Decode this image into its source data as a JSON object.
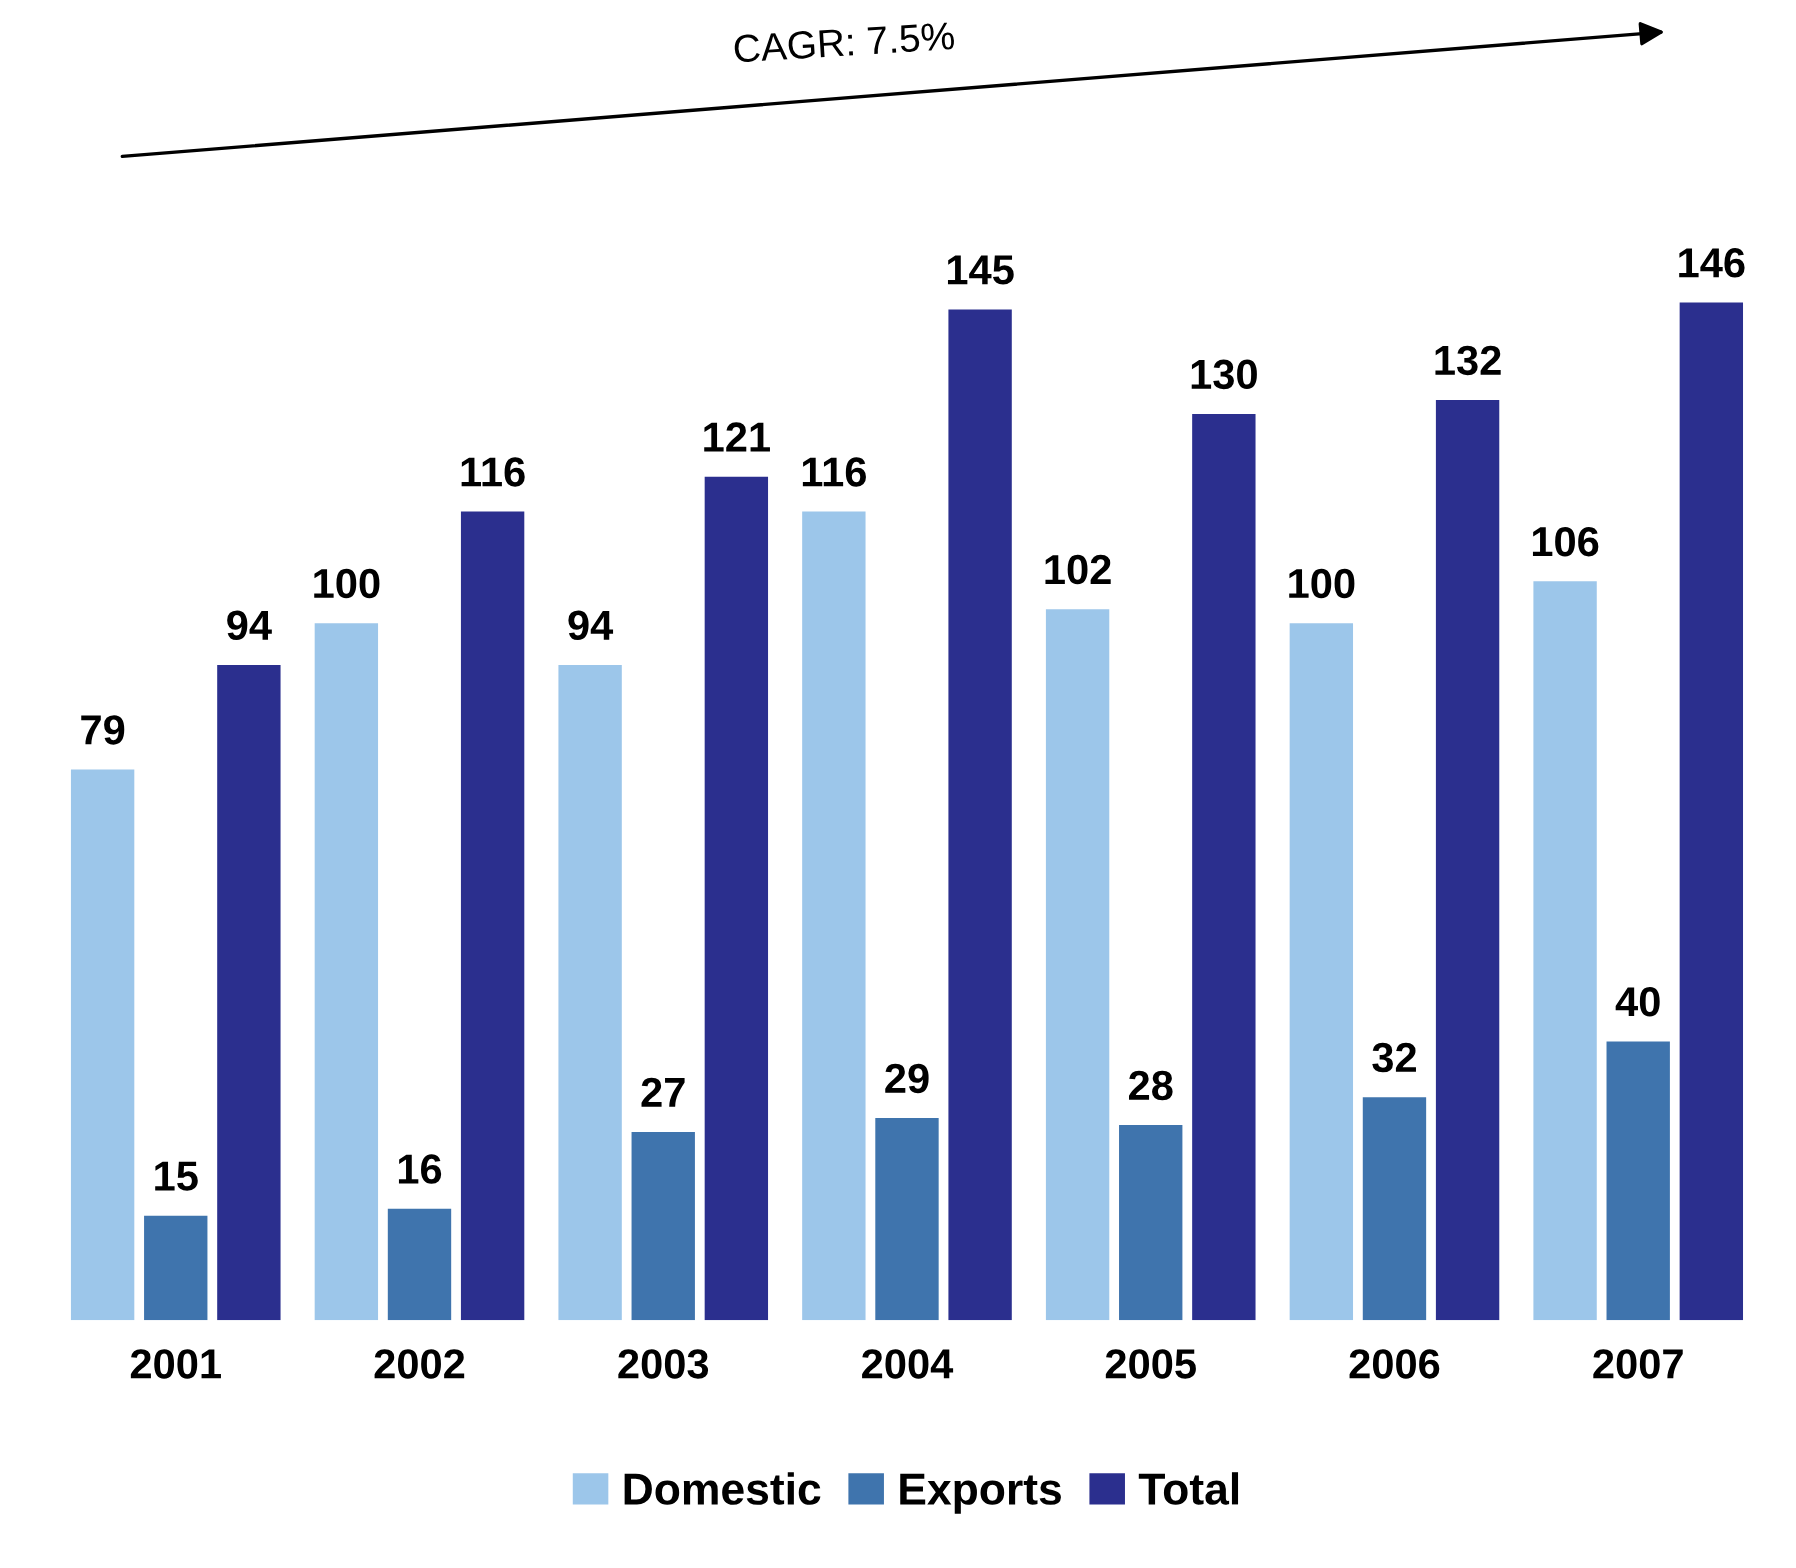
{
  "chart_data": {
    "type": "bar",
    "categories": [
      "2001",
      "2002",
      "2003",
      "2004",
      "2005",
      "2006",
      "2007"
    ],
    "series": [
      {
        "name": "Domestic",
        "color": "#9cc6ea",
        "values": [
          79,
          100,
          94,
          116,
          102,
          100,
          106
        ]
      },
      {
        "name": "Exports",
        "color": "#3f74ad",
        "values": [
          15,
          16,
          27,
          29,
          28,
          32,
          40
        ]
      },
      {
        "name": "Total",
        "color": "#2b2f8e",
        "values": [
          94,
          116,
          121,
          145,
          130,
          132,
          146
        ]
      }
    ],
    "annotations": [
      "CAGR: 7.5%"
    ],
    "data_labels": true,
    "grid": false,
    "legend": "bottom"
  }
}
